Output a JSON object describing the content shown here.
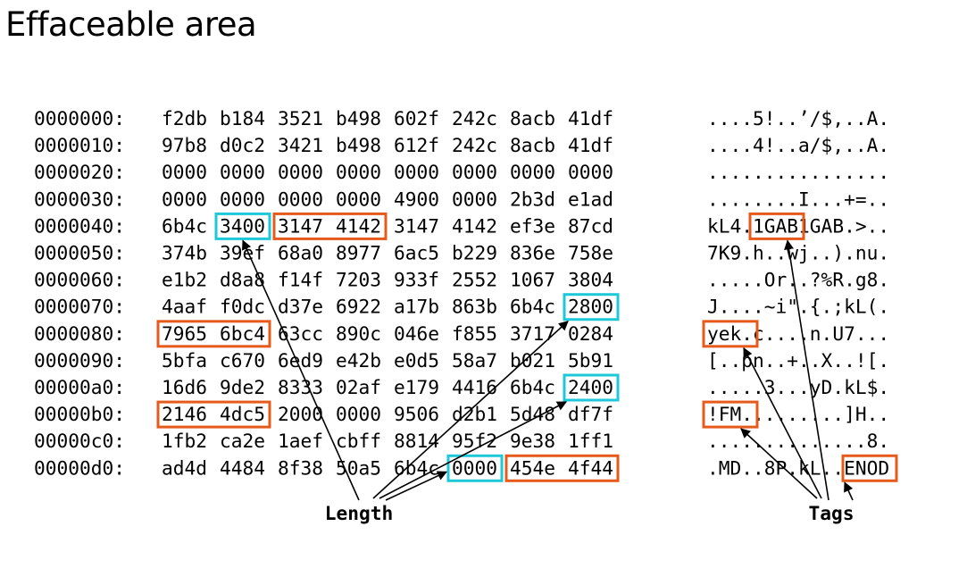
{
  "title": "Effaceable area",
  "rows": [
    {
      "offset": "0000000:",
      "hex": [
        "f2db",
        "b184",
        "3521",
        "b498",
        "602f",
        "242c",
        "8acb",
        "41df"
      ],
      "ascii": "....5!..’/$,..A."
    },
    {
      "offset": "0000010:",
      "hex": [
        "97b8",
        "d0c2",
        "3421",
        "b498",
        "612f",
        "242c",
        "8acb",
        "41df"
      ],
      "ascii": "....4!..a/$,..A."
    },
    {
      "offset": "0000020:",
      "hex": [
        "0000",
        "0000",
        "0000",
        "0000",
        "0000",
        "0000",
        "0000",
        "0000"
      ],
      "ascii": "................"
    },
    {
      "offset": "0000030:",
      "hex": [
        "0000",
        "0000",
        "0000",
        "0000",
        "4900",
        "0000",
        "2b3d",
        "e1ad"
      ],
      "ascii": "........I...+=.."
    },
    {
      "offset": "0000040:",
      "hex": [
        "6b4c",
        "3400",
        "3147",
        "4142",
        "3147",
        "4142",
        "ef3e",
        "87cd"
      ],
      "ascii": "kL4.1GAB1GAB.>.."
    },
    {
      "offset": "0000050:",
      "hex": [
        "374b",
        "39ef",
        "68a0",
        "8977",
        "6ac5",
        "b229",
        "836e",
        "758e"
      ],
      "ascii": "7K9.h..wj..).nu."
    },
    {
      "offset": "0000060:",
      "hex": [
        "e1b2",
        "d8a8",
        "f14f",
        "7203",
        "933f",
        "2552",
        "1067",
        "3804"
      ],
      "ascii": ".....Or..?%R.g8."
    },
    {
      "offset": "0000070:",
      "hex": [
        "4aaf",
        "f0dc",
        "d37e",
        "6922",
        "a17b",
        "863b",
        "6b4c",
        "2800"
      ],
      "ascii": "J....~i\".{.;kL(."
    },
    {
      "offset": "0000080:",
      "hex": [
        "7965",
        "6bc4",
        "63cc",
        "890c",
        "046e",
        "f855",
        "3717",
        "0284"
      ],
      "ascii": "yek.c....n.U7..."
    },
    {
      "offset": "0000090:",
      "hex": [
        "5bfa",
        "c670",
        "6ed9",
        "e42b",
        "e0d5",
        "58a7",
        "b021",
        "5b91"
      ],
      "ascii": "[..pn..+..X..![."
    },
    {
      "offset": "00000a0:",
      "hex": [
        "16d6",
        "9de2",
        "8333",
        "02af",
        "e179",
        "4416",
        "6b4c",
        "2400"
      ],
      "ascii": ".....3...yD.kL$."
    },
    {
      "offset": "00000b0:",
      "hex": [
        "2146",
        "4dc5",
        "2000",
        "0000",
        "9506",
        "d2b1",
        "5d48",
        "df7f"
      ],
      "ascii": "!FM.........]H.."
    },
    {
      "offset": "00000c0:",
      "hex": [
        "1fb2",
        "ca2e",
        "1aef",
        "cbff",
        "8814",
        "95f2",
        "9e38",
        "1ff1"
      ],
      "ascii": "..............8."
    },
    {
      "offset": "00000d0:",
      "hex": [
        "ad4d",
        "4484",
        "8f38",
        "50a5",
        "6b4c",
        "0000",
        "454e",
        "4f44"
      ],
      "ascii": ".MD..8P.kL..ENOD"
    }
  ],
  "labels": {
    "length": "Length",
    "tags": "Tags"
  },
  "colors": {
    "length_box": "#1ec8d8",
    "tag_box": "#e65a1c"
  }
}
